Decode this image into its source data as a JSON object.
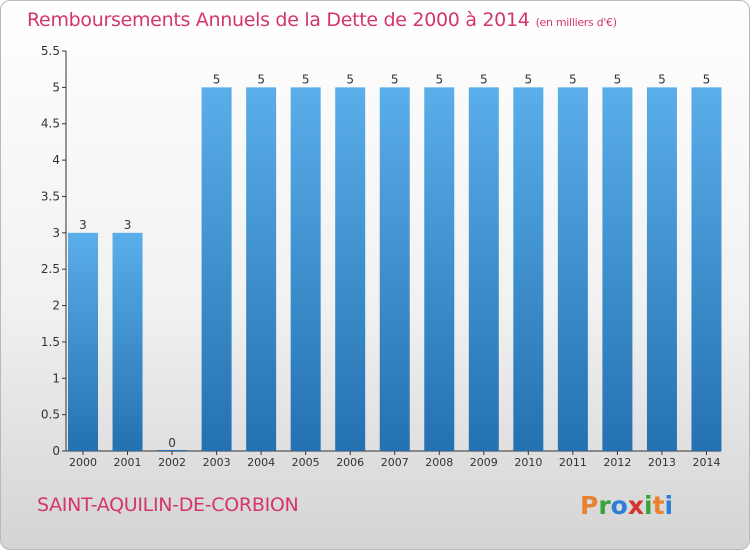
{
  "page": {
    "title": "Remboursements Annuels de la Dette de 2000 à 2014",
    "subtitle": "(en milliers d'€)",
    "commune": "SAINT-AQUILIN-DE-CORBION",
    "logo": {
      "letters": [
        "P",
        "r",
        "o",
        "x",
        "i",
        "t",
        "i"
      ],
      "colors": [
        "#e8822f",
        "#3aa33c",
        "#2e7dd6",
        "#d3352e",
        "#3aa33c",
        "#e8822f",
        "#2e7dd6"
      ]
    }
  },
  "colors": {
    "title": "#d4356e",
    "bar_light": "#5aaeea",
    "bar_dark": "#2471b1",
    "axis": "#333333"
  },
  "chart_data": {
    "type": "bar",
    "title": "Remboursements Annuels de la Dette de 2000 à 2014",
    "subtitle": "(en milliers d'€)",
    "categories": [
      "2000",
      "2001",
      "2002",
      "2003",
      "2004",
      "2005",
      "2006",
      "2007",
      "2008",
      "2009",
      "2010",
      "2011",
      "2012",
      "2013",
      "2014"
    ],
    "values": [
      3,
      3,
      0,
      5,
      5,
      5,
      5,
      5,
      5,
      5,
      5,
      5,
      5,
      5,
      5
    ],
    "data_labels": [
      "3",
      "3",
      "0",
      "5",
      "5",
      "5",
      "5",
      "5",
      "5",
      "5",
      "5",
      "5",
      "5",
      "5",
      "5"
    ],
    "y_ticks": [
      0,
      0.5,
      1,
      1.5,
      2,
      2.5,
      3,
      3.5,
      4,
      4.5,
      5,
      5.5
    ],
    "y_tick_labels": [
      "0",
      "0.5",
      "1",
      "1.5",
      "2",
      "2.5",
      "3",
      "3.5",
      "4",
      "4.5",
      "5",
      "5.5"
    ],
    "ylim": [
      0,
      5.5
    ],
    "grid": false,
    "legend": "none",
    "xlabel": "",
    "ylabel": ""
  }
}
